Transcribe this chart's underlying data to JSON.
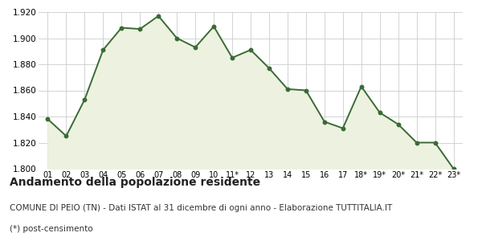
{
  "x_labels": [
    "01",
    "02",
    "03",
    "04",
    "05",
    "06",
    "07",
    "08",
    "09",
    "10",
    "11*",
    "12",
    "13",
    "14",
    "15",
    "16",
    "17",
    "18*",
    "19*",
    "20*",
    "21*",
    "22*",
    "23*"
  ],
  "y_values": [
    1838,
    1825,
    1853,
    1891,
    1908,
    1907,
    1917,
    1900,
    1893,
    1909,
    1885,
    1891,
    1877,
    1861,
    1860,
    1836,
    1831,
    1863,
    1843,
    1834,
    1820,
    1820,
    1800
  ],
  "ylim": [
    1800,
    1920
  ],
  "yticks": [
    1800,
    1820,
    1840,
    1860,
    1880,
    1900,
    1920
  ],
  "line_color": "#3a6b35",
  "fill_color": "#edf2e0",
  "marker_color": "#3a6b35",
  "bg_color": "#ffffff",
  "plot_bg_color": "#ffffff",
  "grid_color": "#cccccc",
  "title": "Andamento della popolazione residente",
  "subtitle": "COMUNE DI PEIO (TN) - Dati ISTAT al 31 dicembre di ogni anno - Elaborazione TUTTITALIA.IT",
  "footnote": "(*) post-censimento",
  "title_fontsize": 10,
  "subtitle_fontsize": 7.5,
  "footnote_fontsize": 7.5
}
